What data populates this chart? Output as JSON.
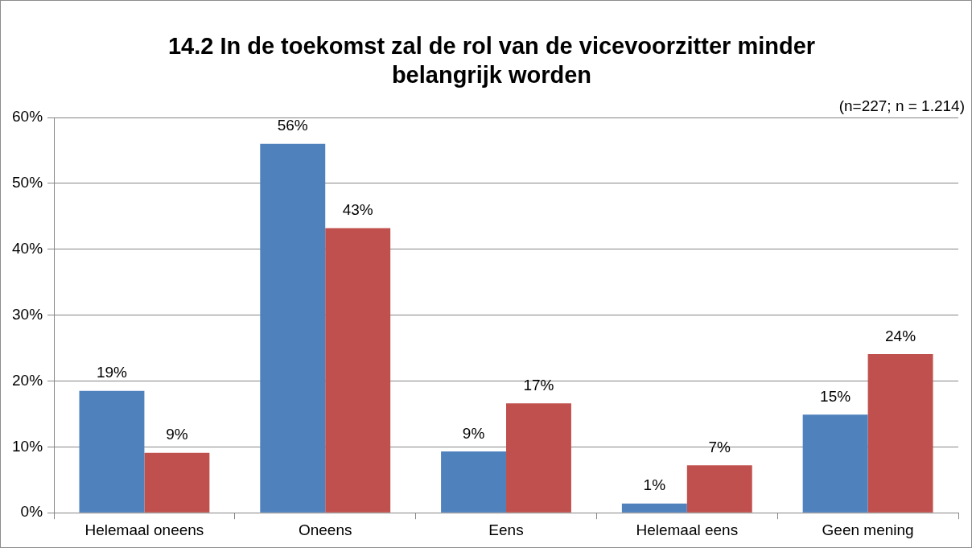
{
  "chart_data": {
    "type": "bar",
    "title": "14.2 In de toekomst zal de rol van de vicevoorzitter minder belangrijk worden",
    "annotations": [
      "(n=227; n = 1.214)"
    ],
    "categories": [
      "Helemaal oneens",
      "Oneens",
      "Eens",
      "Helemaal eens",
      "Geen mening"
    ],
    "series": [
      {
        "color": "#4f81bd",
        "values": [
          18.5,
          56,
          9.3,
          1.4,
          14.9
        ],
        "value_labels": [
          "19%",
          "56%",
          "9%",
          "1%",
          "15%"
        ]
      },
      {
        "color": "#c0504d",
        "values": [
          9.1,
          43.2,
          16.6,
          7.2,
          24.1
        ],
        "value_labels": [
          "9%",
          "43%",
          "17%",
          "7%",
          "24%"
        ]
      }
    ],
    "ylim": [
      0,
      60
    ],
    "yticks": [
      {
        "value": 0,
        "label": "0%"
      },
      {
        "value": 10,
        "label": "10%"
      },
      {
        "value": 20,
        "label": "20%"
      },
      {
        "value": 30,
        "label": "30%"
      },
      {
        "value": 40,
        "label": "40%"
      },
      {
        "value": 50,
        "label": "50%"
      },
      {
        "value": 60,
        "label": "60%"
      }
    ],
    "grid": "y",
    "legend": false
  }
}
